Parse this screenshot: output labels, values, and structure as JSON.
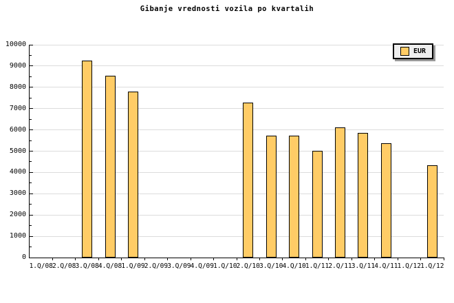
{
  "chart_data": {
    "type": "bar",
    "title": "Gibanje vrednosti vozila po kvartalih",
    "xlabel": "",
    "ylabel": "",
    "categories": [
      "1.Q/08",
      "2.Q/08",
      "3.Q/08",
      "4.Q/08",
      "1.Q/09",
      "2.Q/09",
      "3.Q/09",
      "4.Q/09",
      "1.Q/10",
      "2.Q/10",
      "3.Q/10",
      "4.Q/10",
      "1.Q/11",
      "2.Q/11",
      "3.Q/11",
      "4.Q/11",
      "1.Q/12",
      "1.Q/12"
    ],
    "series": [
      {
        "name": "EUR",
        "values": [
          null,
          null,
          9250,
          8550,
          7800,
          null,
          null,
          null,
          null,
          7280,
          5740,
          5740,
          5030,
          6110,
          5870,
          5370,
          null,
          4350
        ]
      }
    ],
    "ylim": [
      0,
      10000
    ],
    "y_major_step": 1000,
    "y_minor_step": 500,
    "y_tick_labels": [
      "0",
      "1000",
      "2000",
      "3000",
      "4000",
      "5000",
      "6000",
      "7000",
      "8000",
      "9000",
      "10000"
    ],
    "grid": "horizontal",
    "legend": {
      "label": "EUR",
      "position": "top-right"
    },
    "colors": {
      "background": "#FFFFFF",
      "bar_fill": "#FFCC66",
      "bar_border": "#000000",
      "grid": "#DCDCDC",
      "axis": "#000000",
      "text": "#000000",
      "legend_bg": "#EEEEEE",
      "legend_border": "#000000",
      "legend_shadow": "#999999"
    }
  }
}
